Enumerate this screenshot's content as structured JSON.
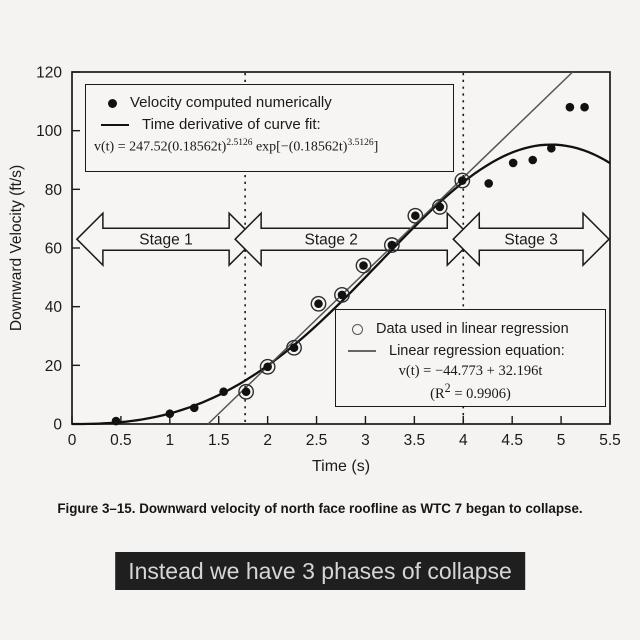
{
  "caption": "Figure 3–15.  Downward velocity of north face roofline as WTC 7 began to collapse.",
  "subtitle_overlay": {
    "text": "Instead we have 3 phases of collapse",
    "bg": "#1f1f1f",
    "color": "#d6d6d6"
  },
  "legend1": {
    "item1": "Velocity computed numerically",
    "item2": "Time derivative of curve fit:",
    "eq": {
      "p1": "v(t) = 247.52(0.18562t)",
      "s1": "2.5126",
      "p2": " exp[−(0.18562t)",
      "s2": "3.5126",
      "p3": "]"
    }
  },
  "legend2": {
    "item1": "Data used in linear regression",
    "item2": "Linear regression equation:",
    "eq": "v(t) = −44.773 + 32.196t",
    "r2_pre": "(R",
    "r2_sup": "2",
    "r2_post": " = 0.9906)"
  },
  "chart_data": {
    "type": "scatter",
    "title": "",
    "xlabel": "Time (s)",
    "ylabel": "Downward Velocity (ft/s)",
    "xlim": [
      0,
      5.5
    ],
    "ylim": [
      0,
      120
    ],
    "xticks": [
      0,
      0.5,
      1,
      1.5,
      2,
      2.5,
      3,
      3.5,
      4,
      4.5,
      5,
      5.5
    ],
    "yticks": [
      0,
      20,
      40,
      60,
      80,
      100,
      120
    ],
    "grid": false,
    "colors": {
      "ink": "#1a1a1a",
      "regression_line": "#555555",
      "background": "#f4f3f1"
    },
    "stage_boundaries_s": [
      1.77,
      4.0
    ],
    "stage_band_center_v": 63,
    "stages": [
      {
        "label": "Stage 1",
        "from": 0.05,
        "to": 1.77,
        "label_dx": 0
      },
      {
        "label": "Stage 2",
        "from": 1.77,
        "to": 4.0,
        "label_dx": -23
      },
      {
        "label": "Stage 3",
        "from": 4.0,
        "to": 5.49,
        "label_dx": 0
      }
    ],
    "series": [
      {
        "name": "Velocity computed numerically",
        "type": "scatter",
        "marker": "filled-circle",
        "points": [
          [
            0.45,
            1
          ],
          [
            1.0,
            3.5
          ],
          [
            1.25,
            5.5
          ],
          [
            1.55,
            11
          ],
          [
            1.78,
            11
          ],
          [
            2.0,
            19.5
          ],
          [
            2.27,
            26
          ],
          [
            2.52,
            41
          ],
          [
            2.76,
            44
          ],
          [
            2.98,
            54
          ],
          [
            3.27,
            61
          ],
          [
            3.51,
            71
          ],
          [
            3.76,
            74
          ],
          [
            3.99,
            83
          ],
          [
            4.26,
            82
          ],
          [
            4.51,
            89
          ],
          [
            4.71,
            90
          ],
          [
            4.9,
            94
          ],
          [
            5.09,
            108
          ],
          [
            5.24,
            108
          ]
        ]
      },
      {
        "name": "Data used in linear regression",
        "type": "scatter-ring",
        "marker": "open-circle",
        "points": [
          [
            1.78,
            11
          ],
          [
            2.0,
            19.5
          ],
          [
            2.27,
            26
          ],
          [
            2.52,
            41
          ],
          [
            2.76,
            44
          ],
          [
            2.98,
            54
          ],
          [
            3.27,
            61
          ],
          [
            3.51,
            71
          ],
          [
            3.76,
            74
          ],
          [
            3.99,
            83
          ]
        ]
      },
      {
        "name": "Time derivative of curve fit",
        "type": "curve",
        "equation": "v(t) = 247.52(0.18562t)^2.5126 exp[−(0.18562t)^3.5126]",
        "params": {
          "A": 247.52,
          "k": 0.18562,
          "p": 2.5126,
          "q": 3.5126
        }
      },
      {
        "name": "Linear regression equation",
        "type": "line",
        "equation": "v(t) = −44.773 + 32.196t",
        "intercept": -44.773,
        "slope": 32.196,
        "r_squared": 0.9906
      }
    ]
  }
}
